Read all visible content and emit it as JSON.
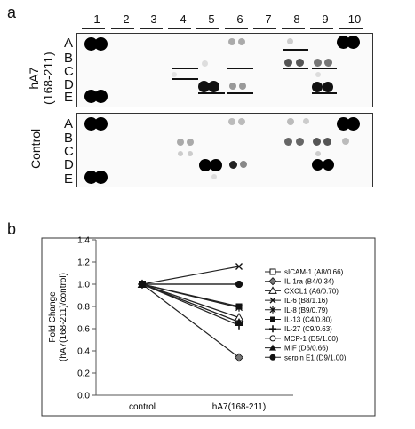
{
  "panel_a_label": "a",
  "panel_b_label": "b",
  "columns": [
    "1",
    "2",
    "3",
    "4",
    "5",
    "6",
    "7",
    "8",
    "9",
    "10"
  ],
  "rows": [
    "A",
    "B",
    "C",
    "D",
    "E"
  ],
  "blot_top_label": "hA7\n(168-211)",
  "blot_top_label_line1": "hA7",
  "blot_top_label_line2": "(168-211)",
  "blot_bottom_label": "Control",
  "chart_data": {
    "type": "line",
    "categories": [
      "control",
      "hA7(168-211)"
    ],
    "ylabel": "Fold Change\n(hA7(168-211)/control)",
    "ylabel_line1": "Fold Change",
    "ylabel_line2": "(hA7(168-211)/control)",
    "ylim": [
      0.0,
      1.4
    ],
    "yticks": [
      "0.0",
      "0.2",
      "0.4",
      "0.6",
      "0.8",
      "1.0",
      "1.2",
      "1.4"
    ],
    "series": [
      {
        "name": "sICAM-1 (A8/0.66)",
        "values": [
          1.0,
          0.66
        ],
        "marker": "square-open"
      },
      {
        "name": "IL-1ra (B4/0.34)",
        "values": [
          1.0,
          0.34
        ],
        "marker": "diamond"
      },
      {
        "name": "CXCL1 (A6/0.70)",
        "values": [
          1.0,
          0.7
        ],
        "marker": "triangle-open"
      },
      {
        "name": "IL-6 (B8/1.16)",
        "values": [
          1.0,
          1.16
        ],
        "marker": "x"
      },
      {
        "name": "IL-8 (B9/0.79)",
        "values": [
          1.0,
          0.79
        ],
        "marker": "star"
      },
      {
        "name": "IL-13 (C4/0.80)",
        "values": [
          1.0,
          0.8
        ],
        "marker": "square"
      },
      {
        "name": "IL-27 (C9/0.63)",
        "values": [
          1.0,
          0.63
        ],
        "marker": "plus"
      },
      {
        "name": "MCP-1 (D5/1.00)",
        "values": [
          1.0,
          1.0
        ],
        "marker": "circle-open"
      },
      {
        "name": "MIF (D6/0.66)",
        "values": [
          1.0,
          0.66
        ],
        "marker": "triangle"
      },
      {
        "name": "serpin E1 (D9/1.00)",
        "values": [
          1.0,
          1.0
        ],
        "marker": "circle"
      }
    ]
  }
}
